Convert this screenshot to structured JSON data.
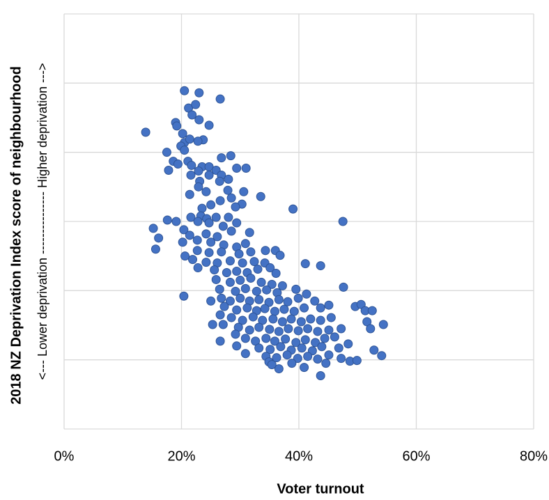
{
  "chart_data": {
    "type": "scatter",
    "xlabel": "Voter turnout",
    "ylabel": "2018 NZ Deprivation Index score of neighbourhood",
    "ylabel_note": "<--- Lower deprivation --------------- Higher deprivation --->",
    "color": "#4472c4",
    "xlim": [
      0,
      80
    ],
    "xticks": [
      {
        "value": 0,
        "label": "0%"
      },
      {
        "value": 20,
        "label": "20%"
      },
      {
        "value": 40,
        "label": "40%"
      },
      {
        "value": 60,
        "label": "60%"
      },
      {
        "value": 80,
        "label": "80%"
      }
    ],
    "ylim": [
      0,
      6
    ],
    "yticks": [
      0,
      1,
      2,
      3,
      4,
      5,
      6
    ],
    "grid": true,
    "x": [
      20.5,
      23.0,
      26.6,
      13.9,
      21.2,
      22.4,
      21.8,
      19.0,
      19.2,
      24.7,
      20.2,
      23.0,
      20.5,
      21.4,
      23.7,
      22.8,
      19.9,
      17.5,
      20.5,
      26.8,
      28.4,
      18.6,
      17.8,
      21.1,
      21.7,
      19.4,
      23.5,
      24.7,
      22.9,
      25.9,
      26.8,
      29.4,
      31.0,
      21.6,
      24.7,
      28.0,
      23.1,
      26.5,
      21.4,
      22.9,
      27.9,
      30.6,
      24.2,
      33.5,
      28.5,
      26.6,
      30.3,
      29.2,
      25.0,
      23.5,
      23.3,
      39.0,
      47.5,
      21.6,
      24.3,
      25.9,
      28.0,
      17.6,
      19.1,
      22.8,
      24.7,
      27.1,
      29.4,
      15.2,
      20.4,
      21.4,
      24.2,
      26.1,
      28.5,
      31.6,
      16.1,
      15.6,
      20.2,
      22.7,
      25.0,
      27.2,
      29.4,
      30.9,
      22.7,
      24.7,
      26.8,
      29.8,
      31.8,
      34.3,
      36.0,
      36.8,
      20.6,
      21.9,
      24.2,
      26.1,
      28.3,
      30.4,
      32.4,
      34.2,
      41.1,
      43.7,
      22.8,
      25.6,
      27.7,
      29.4,
      31.2,
      33.0,
      35.1,
      36.1,
      25.9,
      28.3,
      30.0,
      31.8,
      33.6,
      35.4,
      37.2,
      26.5,
      29.2,
      30.9,
      32.8,
      34.5,
      36.3,
      39.5,
      41.3,
      47.6,
      20.4,
      26.8,
      28.3,
      30.0,
      31.6,
      33.2,
      34.9,
      36.6,
      38.1,
      39.9,
      42.7,
      25.0,
      27.3,
      29.4,
      31.2,
      32.8,
      34.2,
      35.9,
      37.5,
      39.2,
      40.9,
      43.7,
      45.1,
      49.6,
      50.6,
      51.3,
      52.5,
      26.6,
      28.5,
      30.4,
      32.2,
      33.8,
      35.6,
      37.2,
      38.7,
      40.4,
      42.0,
      43.7,
      45.5,
      51.6,
      25.3,
      27.1,
      29.7,
      31.6,
      33.2,
      35.0,
      36.6,
      38.2,
      39.9,
      41.5,
      43.2,
      45.1,
      47.2,
      54.4,
      52.2,
      26.6,
      29.2,
      30.9,
      32.6,
      34.4,
      35.9,
      37.7,
      39.5,
      41.1,
      42.8,
      44.4,
      46.1,
      29.4,
      33.2,
      35.1,
      36.9,
      38.7,
      40.5,
      42.3,
      43.9,
      46.8,
      48.4,
      30.9,
      34.4,
      36.2,
      38.0,
      39.8,
      41.5,
      43.2,
      45.1,
      47.2,
      48.7,
      49.9,
      52.8,
      54.1,
      34.9,
      36.6,
      38.8,
      40.9,
      44.6,
      43.7,
      35.4
    ],
    "values": [
      4.89,
      4.86,
      4.77,
      4.29,
      4.64,
      4.69,
      4.54,
      4.43,
      4.38,
      4.39,
      4.27,
      4.47,
      4.14,
      4.19,
      4.18,
      4.16,
      4.09,
      4.0,
      4.03,
      3.92,
      3.95,
      3.87,
      3.74,
      3.87,
      3.81,
      3.83,
      3.79,
      3.79,
      3.73,
      3.74,
      3.67,
      3.77,
      3.77,
      3.67,
      3.67,
      3.61,
      3.58,
      3.58,
      3.39,
      3.5,
      3.45,
      3.43,
      3.43,
      3.36,
      3.34,
      3.3,
      3.25,
      3.21,
      3.24,
      3.19,
      3.08,
      3.18,
      3.0,
      3.06,
      3.04,
      3.06,
      3.06,
      3.02,
      3.0,
      3.0,
      2.98,
      2.93,
      2.98,
      2.9,
      2.88,
      2.8,
      2.82,
      2.78,
      2.86,
      2.84,
      2.76,
      2.6,
      2.7,
      2.73,
      2.7,
      2.66,
      2.63,
      2.68,
      2.58,
      2.55,
      2.56,
      2.53,
      2.56,
      2.58,
      2.58,
      2.51,
      2.5,
      2.45,
      2.41,
      2.4,
      2.43,
      2.4,
      2.42,
      2.4,
      2.39,
      2.36,
      2.33,
      2.3,
      2.26,
      2.28,
      2.26,
      2.31,
      2.33,
      2.25,
      2.16,
      2.12,
      2.15,
      2.18,
      2.12,
      2.09,
      2.07,
      2.02,
      1.99,
      2.03,
      1.99,
      2.01,
      1.97,
      2.02,
      1.95,
      2.05,
      1.92,
      1.89,
      1.85,
      1.89,
      1.85,
      1.87,
      1.83,
      1.87,
      1.84,
      1.89,
      1.85,
      1.85,
      1.77,
      1.72,
      1.75,
      1.71,
      1.74,
      1.7,
      1.73,
      1.7,
      1.75,
      1.75,
      1.79,
      1.77,
      1.8,
      1.71,
      1.71,
      1.65,
      1.61,
      1.57,
      1.62,
      1.57,
      1.59,
      1.55,
      1.59,
      1.55,
      1.59,
      1.57,
      1.61,
      1.55,
      1.51,
      1.51,
      1.47,
      1.43,
      1.47,
      1.44,
      1.41,
      1.45,
      1.42,
      1.45,
      1.41,
      1.43,
      1.45,
      1.51,
      1.45,
      1.27,
      1.37,
      1.31,
      1.27,
      1.31,
      1.27,
      1.3,
      1.25,
      1.29,
      1.25,
      1.31,
      1.33,
      1.2,
      1.17,
      1.15,
      1.19,
      1.14,
      1.17,
      1.13,
      1.19,
      1.17,
      1.23,
      1.09,
      1.05,
      1.03,
      1.07,
      1.02,
      1.05,
      1.01,
      1.07,
      1.02,
      0.98,
      0.99,
      1.14,
      1.06,
      0.97,
      0.87,
      0.95,
      0.89,
      0.95,
      0.77,
      0.93
    ]
  }
}
